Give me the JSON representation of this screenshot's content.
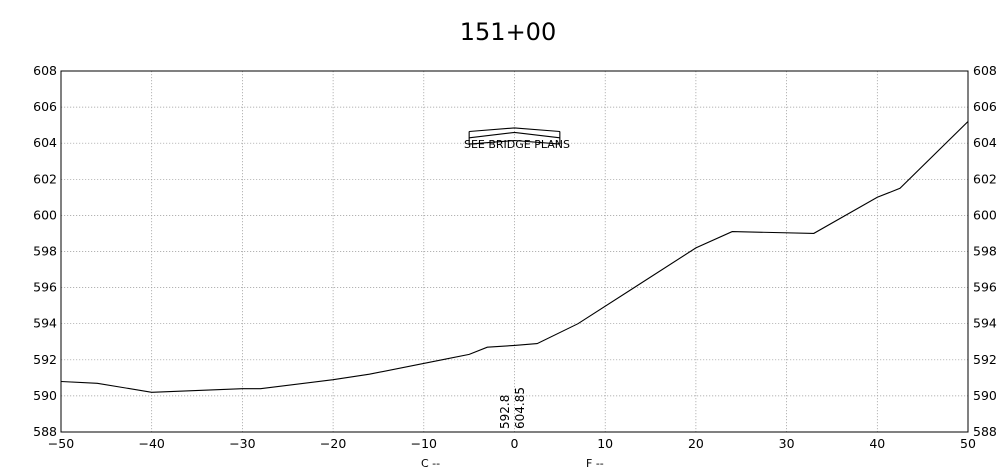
{
  "title": "151+00",
  "annotation": "SEE BRIDGE PLANS",
  "elevations": [
    "592.8",
    "604.85"
  ],
  "centerline_label": "C --",
  "fill_label": "F --",
  "chart_data": {
    "type": "line",
    "title": "151+00",
    "xlabel": "",
    "ylabel": "",
    "xlim": [
      -50,
      50
    ],
    "ylim": [
      588,
      608
    ],
    "grid": true,
    "x_ticks": [
      "-50",
      "-40",
      "-30",
      "-20",
      "-10",
      "0",
      "10",
      "20",
      "30",
      "40",
      "50"
    ],
    "y_ticks": [
      "588",
      "590",
      "592",
      "594",
      "596",
      "598",
      "600",
      "602",
      "604",
      "606",
      "608"
    ],
    "series": [
      {
        "x": [
          -50,
          -46,
          -40,
          -30,
          -28,
          -20,
          -16,
          -8,
          -5,
          -3,
          0,
          2.5,
          7,
          20,
          24,
          33,
          40,
          42.5,
          50
        ],
        "y": [
          590.8,
          590.7,
          590.2,
          590.4,
          590.4,
          590.9,
          591.2,
          592.0,
          592.3,
          592.7,
          592.8,
          592.9,
          594.0,
          598.2,
          599.1,
          599.0,
          601.0,
          601.5,
          605.2
        ]
      }
    ],
    "bridge_deck": {
      "x": [
        -5,
        5
      ],
      "top_y": [
        604.65,
        604.85,
        604.65
      ],
      "mid_y": [
        604.3,
        604.6,
        604.3
      ],
      "bottom_y": [
        603.95,
        604.15,
        603.95
      ]
    }
  }
}
